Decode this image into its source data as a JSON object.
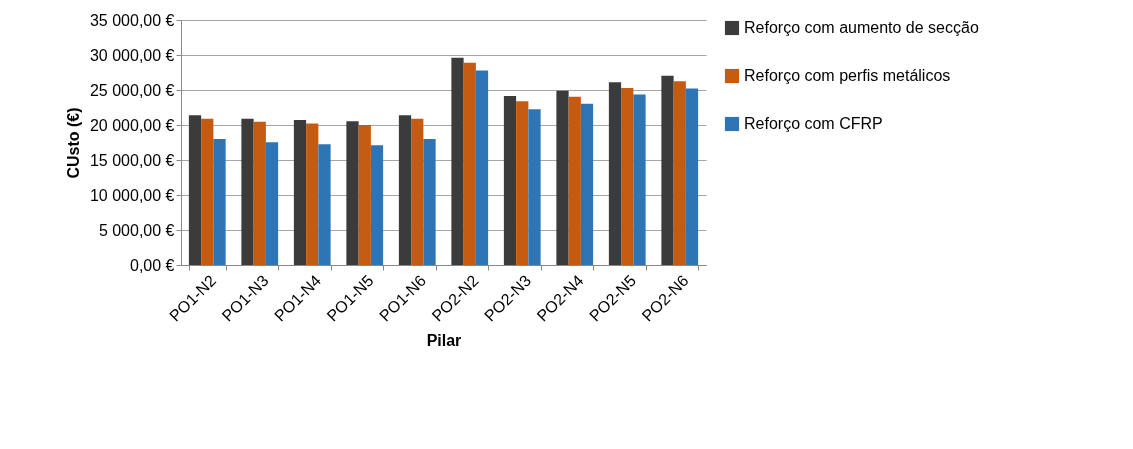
{
  "chart_data": {
    "type": "bar",
    "xlabel": "Pilar",
    "ylabel": "CUsto (€)",
    "categories": [
      "PO1-N2",
      "PO1-N3",
      "PO1-N4",
      "PO1-N5",
      "PO1-N6",
      "PO2-N2",
      "PO2-N3",
      "PO2-N4",
      "PO2-N5",
      "PO2-N6"
    ],
    "series": [
      {
        "name": "Reforço com aumento de secção",
        "color": "#3b3b3b",
        "values": [
          21400,
          20900,
          20700,
          20550,
          21400,
          29600,
          24150,
          24900,
          26100,
          27050
        ]
      },
      {
        "name": "Reforço com perfis metálicos",
        "color": "#c55a11",
        "values": [
          20900,
          20450,
          20200,
          20000,
          20900,
          28900,
          23400,
          24050,
          25300,
          26250
        ]
      },
      {
        "name": "Reforço com CFRP",
        "color": "#2e75b6",
        "values": [
          18000,
          17550,
          17250,
          17100,
          18000,
          27800,
          22250,
          23050,
          24350,
          25200
        ]
      }
    ],
    "ylim": [
      0,
      35000
    ],
    "yticks": [
      {
        "value": 0,
        "label": "0,00 €"
      },
      {
        "value": 5000,
        "label": "5 000,00 €"
      },
      {
        "value": 10000,
        "label": "10 000,00 €"
      },
      {
        "value": 15000,
        "label": "15 000,00 €"
      },
      {
        "value": 20000,
        "label": "20 000,00 €"
      },
      {
        "value": 25000,
        "label": "25 000,00 €"
      },
      {
        "value": 30000,
        "label": "30 000,00 €"
      },
      {
        "value": 35000,
        "label": "35 000,00 €"
      }
    ],
    "grid": "y",
    "legend": "right"
  }
}
